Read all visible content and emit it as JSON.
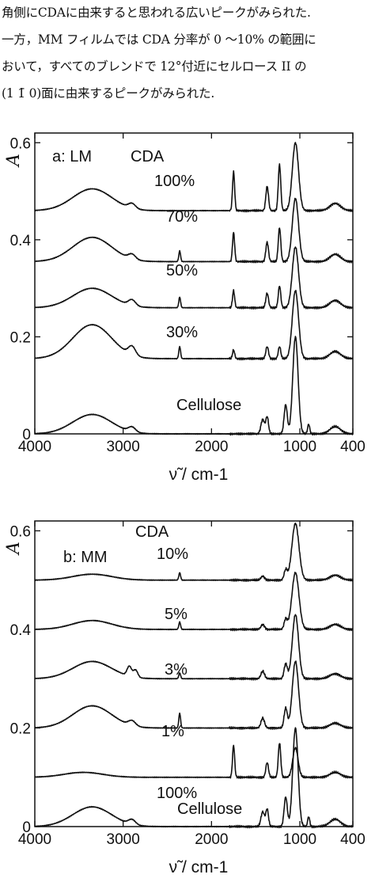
{
  "text_lines": [
    "角側にCDAに由来すると思われる広いピークがみられた.",
    "一方，MM フィルムでは CDA 分率が 0 〜10% の範囲に",
    "おいて，すべてのブレンドで 12°付近にセルロース II の",
    "(1 1̄ 0)面に由来するピークがみられた."
  ],
  "chart_data": [
    {
      "type": "line",
      "panel_label": "a: LM",
      "legend_title": "CDA",
      "xlabel": "ν̃ / cm-1",
      "ylabel": "A",
      "xlim": [
        4000,
        400
      ],
      "ylim": [
        0,
        0.62
      ],
      "xticks": [
        4000,
        3000,
        2000,
        1000,
        400
      ],
      "xtick_labels": [
        "4000",
        "3000",
        "2000",
        "1000",
        "400"
      ],
      "yticks": [
        0,
        0.2,
        0.4,
        0.6
      ],
      "ytick_labels": [
        "0",
        "0.2",
        "0.4",
        "0.6"
      ],
      "series": [
        {
          "label": "100%",
          "baseline": 0.46,
          "peaks": [
            [
              3350,
              0.045,
              220
            ],
            [
              2900,
              0.01,
              40
            ],
            [
              1750,
              0.08,
              12
            ],
            [
              1370,
              0.05,
              15
            ],
            [
              1230,
              0.095,
              14
            ],
            [
              1050,
              0.14,
              35
            ],
            [
              600,
              0.015,
              60
            ]
          ]
        },
        {
          "label": "70%",
          "baseline": 0.355,
          "peaks": [
            [
              3350,
              0.05,
              220
            ],
            [
              2900,
              0.01,
              40
            ],
            [
              2360,
              0.022,
              10
            ],
            [
              1750,
              0.06,
              12
            ],
            [
              1370,
              0.04,
              15
            ],
            [
              1230,
              0.07,
              14
            ],
            [
              1050,
              0.13,
              35
            ],
            [
              600,
              0.015,
              60
            ]
          ]
        },
        {
          "label": "50%",
          "baseline": 0.26,
          "peaks": [
            [
              3350,
              0.04,
              220
            ],
            [
              2900,
              0.012,
              40
            ],
            [
              2360,
              0.022,
              10
            ],
            [
              1750,
              0.035,
              12
            ],
            [
              1370,
              0.03,
              15
            ],
            [
              1230,
              0.045,
              14
            ],
            [
              1050,
              0.125,
              35
            ],
            [
              600,
              0.015,
              60
            ]
          ]
        },
        {
          "label": "30%",
          "baseline": 0.155,
          "peaks": [
            [
              3350,
              0.07,
              220
            ],
            [
              2900,
              0.018,
              40
            ],
            [
              2360,
              0.025,
              10
            ],
            [
              1750,
              0.018,
              12
            ],
            [
              1370,
              0.025,
              15
            ],
            [
              1230,
              0.025,
              14
            ],
            [
              1050,
              0.14,
              35
            ],
            [
              600,
              0.015,
              60
            ]
          ]
        },
        {
          "label": "Cellulose",
          "baseline": 0.0,
          "peaks": [
            [
              3350,
              0.04,
              220
            ],
            [
              2900,
              0.01,
              40
            ],
            [
              1420,
              0.03,
              20
            ],
            [
              1370,
              0.035,
              15
            ],
            [
              1160,
              0.06,
              18
            ],
            [
              1050,
              0.2,
              30
            ],
            [
              900,
              0.02,
              12
            ],
            [
              600,
              0.015,
              60
            ]
          ]
        }
      ]
    },
    {
      "type": "line",
      "panel_label": "b: MM",
      "legend_title": "CDA",
      "xlabel": "ν̃ / cm-1",
      "ylabel": "A",
      "xlim": [
        4000,
        400
      ],
      "ylim": [
        0,
        0.62
      ],
      "xticks": [
        4000,
        3000,
        2000,
        1000,
        400
      ],
      "xtick_labels": [
        "4000",
        "3000",
        "2000",
        "1000",
        "400"
      ],
      "yticks": [
        0,
        0.2,
        0.4,
        0.6
      ],
      "ytick_labels": [
        "0",
        "0.2",
        "0.4",
        "0.6"
      ],
      "series": [
        {
          "label": "10%",
          "baseline": 0.5,
          "peaks": [
            [
              3350,
              0.012,
              220
            ],
            [
              2360,
              0.015,
              10
            ],
            [
              1420,
              0.008,
              20
            ],
            [
              1160,
              0.02,
              18
            ],
            [
              1050,
              0.115,
              40
            ],
            [
              600,
              0.01,
              60
            ]
          ]
        },
        {
          "label": "5%",
          "baseline": 0.4,
          "peaks": [
            [
              3350,
              0.018,
              220
            ],
            [
              2360,
              0.015,
              10
            ],
            [
              1420,
              0.01,
              20
            ],
            [
              1160,
              0.02,
              18
            ],
            [
              1050,
              0.115,
              40
            ],
            [
              600,
              0.01,
              60
            ]
          ]
        },
        {
          "label": "3%",
          "baseline": 0.3,
          "peaks": [
            [
              3350,
              0.035,
              220
            ],
            [
              2930,
              0.02,
              25
            ],
            [
              2860,
              0.015,
              25
            ],
            [
              2360,
              0.012,
              10
            ],
            [
              1420,
              0.015,
              20
            ],
            [
              1160,
              0.03,
              18
            ],
            [
              1050,
              0.13,
              35
            ],
            [
              600,
              0.01,
              60
            ]
          ]
        },
        {
          "label": "1%",
          "baseline": 0.2,
          "peaks": [
            [
              3350,
              0.045,
              220
            ],
            [
              2900,
              0.01,
              40
            ],
            [
              2360,
              0.03,
              10
            ],
            [
              1420,
              0.02,
              20
            ],
            [
              1160,
              0.04,
              18
            ],
            [
              1050,
              0.135,
              35
            ],
            [
              600,
              0.01,
              60
            ]
          ]
        },
        {
          "label": "100%",
          "baseline": 0.1,
          "peaks": [
            [
              3450,
              0.01,
              220
            ],
            [
              1750,
              0.065,
              12
            ],
            [
              1370,
              0.03,
              15
            ],
            [
              1230,
              0.07,
              14
            ],
            [
              1050,
              0.06,
              30
            ],
            [
              600,
              0.01,
              60
            ]
          ]
        },
        {
          "label": "Cellulose",
          "baseline": 0.0,
          "peaks": [
            [
              3350,
              0.04,
              220
            ],
            [
              2900,
              0.01,
              40
            ],
            [
              1420,
              0.03,
              20
            ],
            [
              1370,
              0.035,
              15
            ],
            [
              1160,
              0.06,
              18
            ],
            [
              1050,
              0.2,
              30
            ],
            [
              900,
              0.02,
              12
            ],
            [
              600,
              0.015,
              60
            ]
          ]
        }
      ]
    }
  ]
}
